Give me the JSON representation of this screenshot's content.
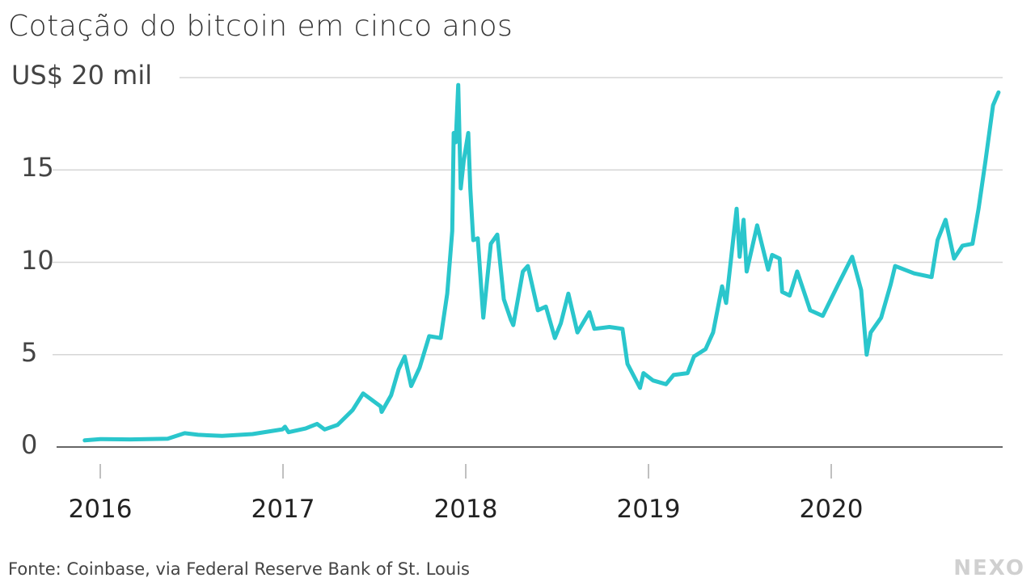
{
  "chart_data": {
    "type": "line",
    "title": "Cotação do bitcoin em cinco anos",
    "ylabel": "",
    "xlabel": "",
    "y_ticks": [
      "US$ 20 mil",
      "15",
      "10",
      "5",
      "0"
    ],
    "y_tick_values": [
      20,
      15,
      10,
      5,
      0
    ],
    "x_ticks": [
      "2016",
      "2017",
      "2018",
      "2019",
      "2020"
    ],
    "ylim": [
      0,
      20
    ],
    "grid": true,
    "line_color": "#2ac6cc",
    "unit": "thousand US$",
    "series": [
      {
        "points": [
          [
            "2015-12-01",
            0.36
          ],
          [
            "2016-01-01",
            0.43
          ],
          [
            "2016-03-01",
            0.41
          ],
          [
            "2016-05-15",
            0.45
          ],
          [
            "2016-06-18",
            0.75
          ],
          [
            "2016-07-15",
            0.66
          ],
          [
            "2016-09-01",
            0.6
          ],
          [
            "2016-11-01",
            0.7
          ],
          [
            "2016-12-31",
            0.96
          ],
          [
            "2017-01-05",
            1.1
          ],
          [
            "2017-01-12",
            0.8
          ],
          [
            "2017-02-15",
            1.0
          ],
          [
            "2017-03-10",
            1.25
          ],
          [
            "2017-03-25",
            0.95
          ],
          [
            "2017-04-20",
            1.2
          ],
          [
            "2017-05-20",
            2.0
          ],
          [
            "2017-06-10",
            2.9
          ],
          [
            "2017-07-15",
            2.2
          ],
          [
            "2017-07-17",
            1.9
          ],
          [
            "2017-08-05",
            2.8
          ],
          [
            "2017-08-20",
            4.2
          ],
          [
            "2017-09-01",
            4.9
          ],
          [
            "2017-09-14",
            3.3
          ],
          [
            "2017-10-01",
            4.3
          ],
          [
            "2017-10-20",
            6.0
          ],
          [
            "2017-11-12",
            5.9
          ],
          [
            "2017-11-25",
            8.3
          ],
          [
            "2017-12-05",
            11.7
          ],
          [
            "2017-12-08",
            17.0
          ],
          [
            "2017-12-12",
            16.5
          ],
          [
            "2017-12-17",
            19.6
          ],
          [
            "2017-12-22",
            14.0
          ],
          [
            "2017-12-28",
            15.5
          ],
          [
            "2018-01-06",
            17.0
          ],
          [
            "2018-01-10",
            14.0
          ],
          [
            "2018-01-16",
            11.2
          ],
          [
            "2018-01-25",
            11.3
          ],
          [
            "2018-02-05",
            7.0
          ],
          [
            "2018-02-20",
            11.0
          ],
          [
            "2018-03-05",
            11.5
          ],
          [
            "2018-03-18",
            8.0
          ],
          [
            "2018-04-01",
            6.9
          ],
          [
            "2018-04-06",
            6.6
          ],
          [
            "2018-04-25",
            9.5
          ],
          [
            "2018-05-05",
            9.8
          ],
          [
            "2018-05-25",
            7.4
          ],
          [
            "2018-06-10",
            7.6
          ],
          [
            "2018-06-28",
            5.9
          ],
          [
            "2018-07-10",
            6.7
          ],
          [
            "2018-07-25",
            8.3
          ],
          [
            "2018-08-12",
            6.2
          ],
          [
            "2018-09-05",
            7.3
          ],
          [
            "2018-09-15",
            6.4
          ],
          [
            "2018-10-15",
            6.5
          ],
          [
            "2018-11-10",
            6.4
          ],
          [
            "2018-11-20",
            4.5
          ],
          [
            "2018-12-15",
            3.2
          ],
          [
            "2018-12-22",
            4.0
          ],
          [
            "2019-01-10",
            3.6
          ],
          [
            "2019-02-05",
            3.4
          ],
          [
            "2019-02-20",
            3.9
          ],
          [
            "2019-03-20",
            4.0
          ],
          [
            "2019-04-02",
            4.9
          ],
          [
            "2019-04-25",
            5.3
          ],
          [
            "2019-05-10",
            6.2
          ],
          [
            "2019-05-28",
            8.7
          ],
          [
            "2019-06-05",
            7.8
          ],
          [
            "2019-06-26",
            12.9
          ],
          [
            "2019-07-02",
            10.3
          ],
          [
            "2019-07-10",
            12.3
          ],
          [
            "2019-07-16",
            9.5
          ],
          [
            "2019-08-06",
            12.0
          ],
          [
            "2019-08-28",
            9.6
          ],
          [
            "2019-09-05",
            10.4
          ],
          [
            "2019-09-20",
            10.2
          ],
          [
            "2019-09-25",
            8.4
          ],
          [
            "2019-10-10",
            8.2
          ],
          [
            "2019-10-25",
            9.5
          ],
          [
            "2019-11-20",
            7.4
          ],
          [
            "2019-12-15",
            7.1
          ],
          [
            "2020-01-15",
            8.8
          ],
          [
            "2020-02-12",
            10.3
          ],
          [
            "2020-03-01",
            8.5
          ],
          [
            "2020-03-12",
            5.0
          ],
          [
            "2020-03-20",
            6.2
          ],
          [
            "2020-04-10",
            7.0
          ],
          [
            "2020-04-29",
            8.8
          ],
          [
            "2020-05-08",
            9.8
          ],
          [
            "2020-06-15",
            9.4
          ],
          [
            "2020-07-20",
            9.2
          ],
          [
            "2020-08-01",
            11.2
          ],
          [
            "2020-08-17",
            12.3
          ],
          [
            "2020-09-03",
            10.2
          ],
          [
            "2020-09-20",
            10.9
          ],
          [
            "2020-10-10",
            11.0
          ],
          [
            "2020-10-22",
            12.9
          ],
          [
            "2020-11-05",
            15.5
          ],
          [
            "2020-11-20",
            18.5
          ],
          [
            "2020-12-01",
            19.2
          ]
        ]
      }
    ]
  },
  "source": "Fonte: Coinbase, via Federal Reserve Bank of St. Louis",
  "logo": "NEXO"
}
